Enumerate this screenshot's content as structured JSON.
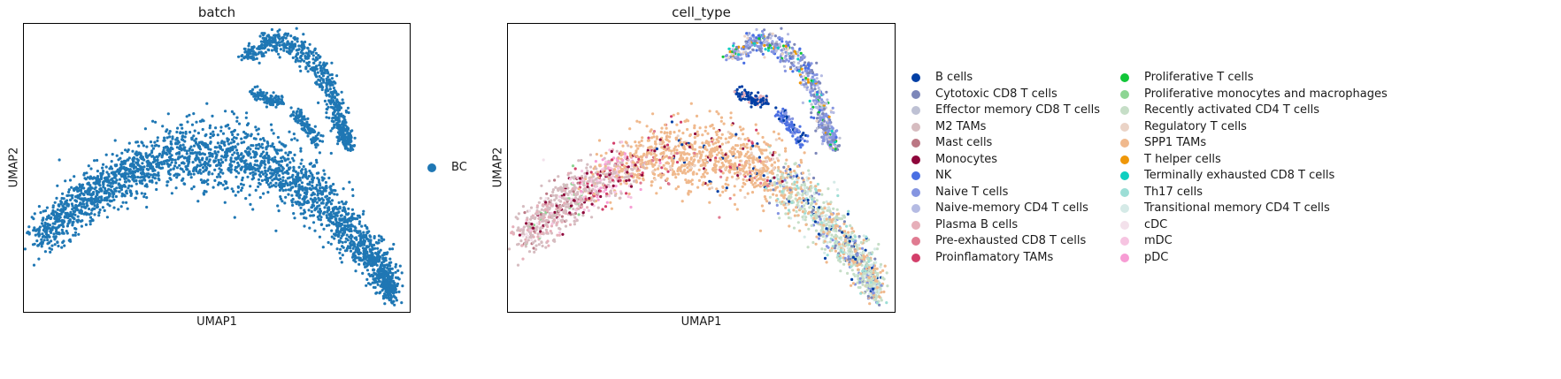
{
  "chart_data": [
    {
      "type": "scatter",
      "title": "batch",
      "xlabel": "UMAP1",
      "ylabel": "UMAP2",
      "grid": false,
      "legend_placement": "right",
      "categories": [
        {
          "name": "BC",
          "color": "#1f77b4"
        }
      ]
    },
    {
      "type": "scatter",
      "title": "cell_type",
      "xlabel": "UMAP1",
      "ylabel": "UMAP2",
      "grid": false,
      "legend_placement": "right",
      "categories": [
        {
          "name": "B cells",
          "color": "#023fa5"
        },
        {
          "name": "Cytotoxic CD8 T cells",
          "color": "#7d87b9"
        },
        {
          "name": "Effector memory CD8 T cells",
          "color": "#bec1d4"
        },
        {
          "name": "M2 TAMs",
          "color": "#d6bcc0"
        },
        {
          "name": "Mast cells",
          "color": "#bb7784"
        },
        {
          "name": "Monocytes",
          "color": "#8e063b"
        },
        {
          "name": "NK",
          "color": "#4a6fe3"
        },
        {
          "name": "Naive T cells",
          "color": "#8595e1"
        },
        {
          "name": "Naive-memory CD4 T cells",
          "color": "#b5bbe3"
        },
        {
          "name": "Plasma B cells",
          "color": "#e6afb9"
        },
        {
          "name": "Pre-exhausted CD8 T cells",
          "color": "#e07b91"
        },
        {
          "name": "Proinflamatory TAMs",
          "color": "#d33f6a"
        },
        {
          "name": "Proliferative T cells",
          "color": "#11c638"
        },
        {
          "name": "Proliferative monocytes and macrophages",
          "color": "#8dd593"
        },
        {
          "name": "Recently activated CD4 T cells",
          "color": "#c6dec7"
        },
        {
          "name": "Regulatory T cells",
          "color": "#ead3c6"
        },
        {
          "name": "SPP1 TAMs",
          "color": "#f0b98d"
        },
        {
          "name": "T helper cells",
          "color": "#ef9708"
        },
        {
          "name": "Terminally exhausted CD8 T cells",
          "color": "#0fcfc0"
        },
        {
          "name": "Th17 cells",
          "color": "#9cded6"
        },
        {
          "name": "Transitional memory CD4 T cells",
          "color": "#d5eae7"
        },
        {
          "name": "cDC",
          "color": "#f3e1eb"
        },
        {
          "name": "mDC",
          "color": "#f6c4e1"
        },
        {
          "name": "pDC",
          "color": "#f79cd4"
        }
      ]
    }
  ]
}
